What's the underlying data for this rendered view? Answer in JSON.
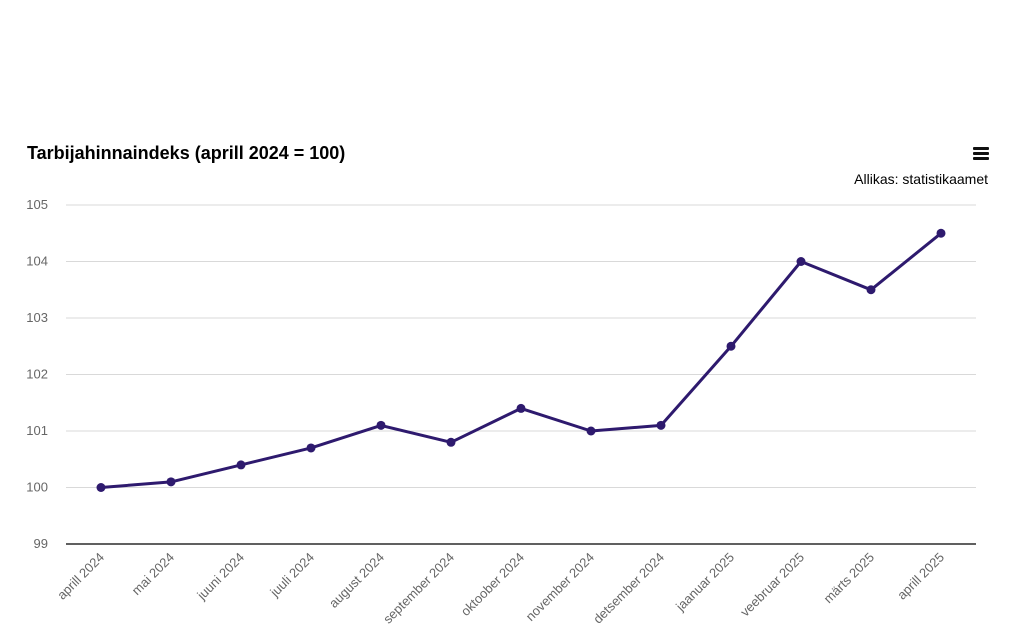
{
  "title": "Tarbijahinnaindeks (aprill 2024 = 100)",
  "source": "Allikas: statistikaamet",
  "menu_icon": "hamburger-menu-icon",
  "colors": {
    "line": "#2e1a6e",
    "grid": "#d9d9d9",
    "axis": "#000000"
  },
  "chart_data": {
    "type": "line",
    "title": "Tarbijahinnaindeks (aprill 2024 = 100)",
    "categories": [
      "aprill 2024",
      "mai 2024",
      "juuni 2024",
      "juuli 2024",
      "august 2024",
      "september 2024",
      "oktoober 2024",
      "november 2024",
      "detsember 2024",
      "jaanuar 2025",
      "veebruar 2025",
      "märts 2025",
      "aprill 2025"
    ],
    "series": [
      {
        "values": [
          100,
          100.1,
          100.4,
          100.7,
          101.1,
          100.8,
          101.4,
          101,
          101.1,
          102.5,
          104,
          103.5,
          104.5
        ]
      }
    ],
    "yticks": [
      "99",
      "100",
      "101",
      "102",
      "103",
      "104",
      "105"
    ],
    "ylim": [
      99,
      105
    ],
    "grid": true,
    "xlabel": "",
    "ylabel": ""
  }
}
